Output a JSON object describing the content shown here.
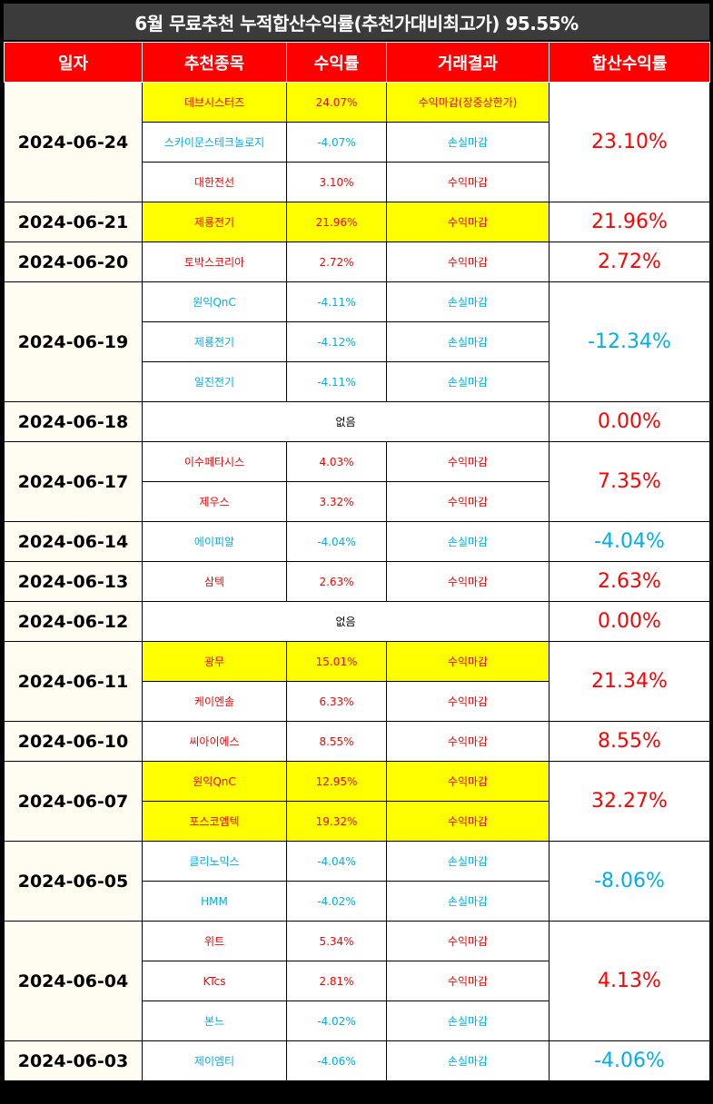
{
  "title": "6월 무료추천 누적합산수익률(추천가대비최고가) 95.55%",
  "headers": [
    "일자",
    "추천종목",
    "수익률",
    "거래결과",
    "합산수익률"
  ],
  "groups": [
    {
      "date": "2024-06-24",
      "total": "23.10%",
      "total_sign": "pos",
      "rows": [
        {
          "stock": "데브시스터즈",
          "ret": "24.07%",
          "result": "수익마감(장중상한가)",
          "sign": "pos",
          "highlight": true
        },
        {
          "stock": "스카이문스테크놀로지",
          "ret": "-4.07%",
          "result": "손실마감",
          "sign": "neg",
          "highlight": false
        },
        {
          "stock": "대한전선",
          "ret": "3.10%",
          "result": "수익마감",
          "sign": "pos",
          "highlight": false
        }
      ]
    },
    {
      "date": "2024-06-21",
      "total": "21.96%",
      "total_sign": "pos",
      "rows": [
        {
          "stock": "제룡전기",
          "ret": "21.96%",
          "result": "수익마감",
          "sign": "pos",
          "highlight": true
        }
      ]
    },
    {
      "date": "2024-06-20",
      "total": "2.72%",
      "total_sign": "pos",
      "rows": [
        {
          "stock": "토박스코리아",
          "ret": "2.72%",
          "result": "수익마감",
          "sign": "pos",
          "highlight": false
        }
      ]
    },
    {
      "date": "2024-06-19",
      "total": "-12.34%",
      "total_sign": "neg",
      "rows": [
        {
          "stock": "원익QnC",
          "ret": "-4.11%",
          "result": "손실마감",
          "sign": "neg",
          "highlight": false
        },
        {
          "stock": "제룡전기",
          "ret": "-4.12%",
          "result": "손실마감",
          "sign": "neg",
          "highlight": false
        },
        {
          "stock": "일진전기",
          "ret": "-4.11%",
          "result": "손실마감",
          "sign": "neg",
          "highlight": false
        }
      ]
    },
    {
      "date": "2024-06-18",
      "total": "0.00%",
      "total_sign": "pos",
      "none": "없음",
      "rows": []
    },
    {
      "date": "2024-06-17",
      "total": "7.35%",
      "total_sign": "pos",
      "rows": [
        {
          "stock": "이수페타시스",
          "ret": "4.03%",
          "result": "수익마감",
          "sign": "pos",
          "highlight": false
        },
        {
          "stock": "제우스",
          "ret": "3.32%",
          "result": "수익마감",
          "sign": "pos",
          "highlight": false
        }
      ]
    },
    {
      "date": "2024-06-14",
      "total": "-4.04%",
      "total_sign": "neg",
      "rows": [
        {
          "stock": "에이피알",
          "ret": "-4.04%",
          "result": "손실마감",
          "sign": "neg",
          "highlight": false
        }
      ]
    },
    {
      "date": "2024-06-13",
      "total": "2.63%",
      "total_sign": "pos",
      "rows": [
        {
          "stock": "삼텍",
          "ret": "2.63%",
          "result": "수익마감",
          "sign": "pos",
          "highlight": false
        }
      ]
    },
    {
      "date": "2024-06-12",
      "total": "0.00%",
      "total_sign": "pos",
      "none": "없음",
      "rows": []
    },
    {
      "date": "2024-06-11",
      "total": "21.34%",
      "total_sign": "pos",
      "rows": [
        {
          "stock": "광무",
          "ret": "15.01%",
          "result": "수익마감",
          "sign": "pos",
          "highlight": true
        },
        {
          "stock": "케이엔솔",
          "ret": "6.33%",
          "result": "수익마감",
          "sign": "pos",
          "highlight": false
        }
      ]
    },
    {
      "date": "2024-06-10",
      "total": "8.55%",
      "total_sign": "pos",
      "rows": [
        {
          "stock": "씨아이에스",
          "ret": "8.55%",
          "result": "수익마감",
          "sign": "pos",
          "highlight": false
        }
      ]
    },
    {
      "date": "2024-06-07",
      "total": "32.27%",
      "total_sign": "pos",
      "rows": [
        {
          "stock": "원익QnC",
          "ret": "12.95%",
          "result": "수익마감",
          "sign": "pos",
          "highlight": true
        },
        {
          "stock": "포스코엠텍",
          "ret": "19.32%",
          "result": "수익마감",
          "sign": "pos",
          "highlight": true
        }
      ]
    },
    {
      "date": "2024-06-05",
      "total": "-8.06%",
      "total_sign": "neg",
      "rows": [
        {
          "stock": "클리노믹스",
          "ret": "-4.04%",
          "result": "손실마감",
          "sign": "neg",
          "highlight": false
        },
        {
          "stock": "HMM",
          "ret": "-4.02%",
          "result": "손실마감",
          "sign": "neg",
          "highlight": false
        }
      ]
    },
    {
      "date": "2024-06-04",
      "total": "4.13%",
      "total_sign": "pos",
      "rows": [
        {
          "stock": "위트",
          "ret": "5.34%",
          "result": "수익마감",
          "sign": "pos",
          "highlight": false
        },
        {
          "stock": "KTcs",
          "ret": "2.81%",
          "result": "수익마감",
          "sign": "pos",
          "highlight": false
        },
        {
          "stock": "본느",
          "ret": "-4.02%",
          "result": "손실마감",
          "sign": "neg",
          "highlight": false
        }
      ]
    },
    {
      "date": "2024-06-03",
      "total": "-4.06%",
      "total_sign": "neg",
      "rows": [
        {
          "stock": "제이엠티",
          "ret": "-4.06%",
          "result": "손실마감",
          "sign": "neg",
          "highlight": false
        }
      ]
    }
  ]
}
